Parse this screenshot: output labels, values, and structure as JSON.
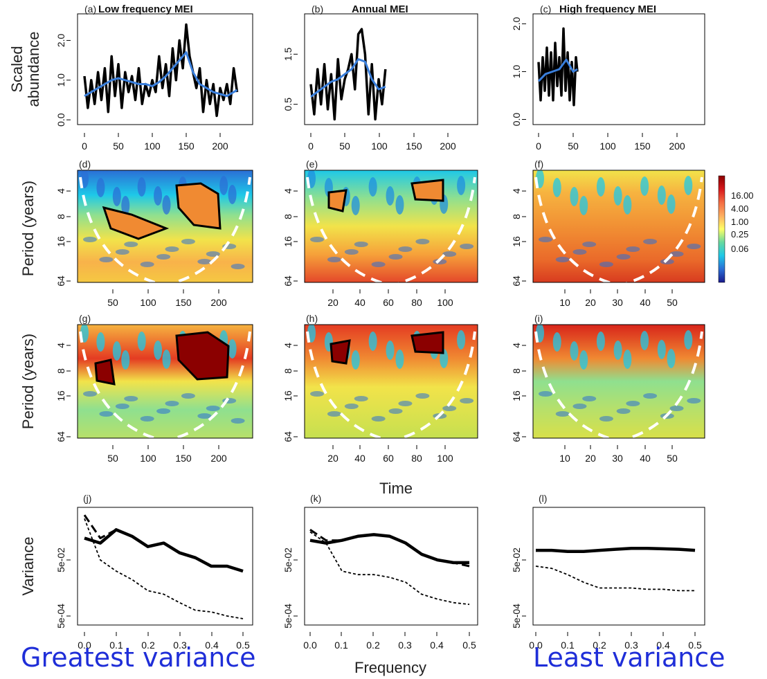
{
  "figure": {
    "ylabel_row1": "Scaled abundance",
    "ylabel_row1_line1": "Scaled",
    "ylabel_row1_line2": "abundance",
    "ylabel_row2": "Period (years)",
    "ylabel_row3": "Period (years)",
    "ylabel_row4": "Variance",
    "xlabel_row3": "Time",
    "xlabel_row4": "Frequency",
    "footer_left": "Greatest variance",
    "footer_right": "Least variance",
    "colors": {
      "raw_series": "#000000",
      "smooth_series": "#3a7fdc",
      "footer_text": "#1f2ed8",
      "cone": "#ffffff"
    }
  },
  "colorbar": {
    "tick_labels": [
      "16.00",
      "4.00",
      "1.00",
      "0.25",
      "0.06"
    ],
    "tick_values": [
      16,
      4,
      1,
      0.25,
      0.06
    ],
    "gradient": [
      "#8b0000",
      "#d7191c",
      "#f46d43",
      "#fdae61",
      "#ffff66",
      "#66d9a0",
      "#1ec8e8",
      "#2b6fd6",
      "#1a1a8c"
    ]
  },
  "chart_data": [
    {
      "id": "a",
      "panel_label": "(a)",
      "title": "Low frequency MEI",
      "type": "line",
      "x_ticks": [
        "0",
        "50",
        "100",
        "150",
        "200"
      ],
      "xlim": [
        -5,
        235
      ],
      "y_ticks": [
        "0.0",
        "1.0",
        "2.0"
      ],
      "ylim": [
        -0.05,
        2.6
      ],
      "series": [
        {
          "x": [
            0,
            5,
            10,
            15,
            20,
            25,
            30,
            35,
            40,
            45,
            50,
            55,
            60,
            65,
            70,
            75,
            80,
            85,
            90,
            95,
            100,
            105,
            110,
            115,
            120,
            125,
            130,
            135,
            140,
            145,
            150,
            155,
            160,
            165,
            170,
            175,
            180,
            185,
            190,
            195,
            200,
            205,
            210,
            215,
            220,
            225
          ],
          "values": [
            1.1,
            0.3,
            1.0,
            0.4,
            1.2,
            0.5,
            1.3,
            0.2,
            1.6,
            0.6,
            1.4,
            0.3,
            1.2,
            0.7,
            1.1,
            0.5,
            1.3,
            0.4,
            0.9,
            0.6,
            1.0,
            0.7,
            1.6,
            0.8,
            1.4,
            0.6,
            1.8,
            1.0,
            2.0,
            1.3,
            2.4,
            1.6,
            1.2,
            0.8,
            1.3,
            0.2,
            1.0,
            0.4,
            0.9,
            0.1,
            0.8,
            0.5,
            0.9,
            0.4,
            1.3,
            0.7
          ]
        },
        {
          "x": [
            0,
            10,
            20,
            30,
            40,
            50,
            60,
            70,
            80,
            90,
            100,
            110,
            120,
            130,
            140,
            150,
            160,
            170,
            180,
            190,
            200,
            210,
            220,
            225
          ],
          "values": [
            0.6,
            0.7,
            0.8,
            0.9,
            1.0,
            1.05,
            1.0,
            0.95,
            0.9,
            0.9,
            0.85,
            0.95,
            1.1,
            1.3,
            1.5,
            1.7,
            1.2,
            0.9,
            0.8,
            0.7,
            0.65,
            0.6,
            0.7,
            0.75
          ]
        }
      ]
    },
    {
      "id": "b",
      "panel_label": "(b)",
      "title": "Annual MEI",
      "type": "line",
      "x_ticks": [
        "0",
        "50",
        "100",
        "150",
        "200"
      ],
      "xlim": [
        -5,
        235
      ],
      "y_ticks": [
        "0.5",
        "1.5"
      ],
      "ylim": [
        0.15,
        2.25
      ],
      "series": [
        {
          "x": [
            0,
            5,
            10,
            15,
            20,
            25,
            30,
            35,
            40,
            45,
            50,
            55,
            60,
            65,
            70,
            75,
            80,
            85,
            90,
            95,
            100,
            105,
            110
          ],
          "values": [
            0.9,
            0.3,
            1.2,
            0.5,
            1.3,
            0.4,
            1.1,
            0.2,
            1.4,
            0.6,
            1.0,
            1.2,
            1.5,
            0.8,
            1.9,
            2.0,
            1.5,
            0.3,
            1.3,
            0.2,
            1.0,
            0.5,
            1.2
          ]
        },
        {
          "x": [
            0,
            10,
            20,
            30,
            40,
            50,
            60,
            70,
            80,
            90,
            100,
            110
          ],
          "values": [
            0.65,
            0.75,
            0.85,
            0.95,
            1.0,
            1.1,
            1.2,
            1.4,
            1.35,
            1.0,
            0.8,
            0.85
          ]
        }
      ]
    },
    {
      "id": "c",
      "panel_label": "(c)",
      "title": "High frequency MEI",
      "type": "line",
      "x_ticks": [
        "0",
        "50",
        "100",
        "150",
        "200"
      ],
      "xlim": [
        -5,
        235
      ],
      "y_ticks": [
        "0.0",
        "1.0",
        "2.0"
      ],
      "ylim": [
        -0.05,
        2.15
      ],
      "series": [
        {
          "x": [
            0,
            3,
            6,
            9,
            12,
            15,
            18,
            21,
            24,
            27,
            30,
            33,
            36,
            39,
            42,
            45,
            48,
            51,
            54,
            56
          ],
          "values": [
            1.2,
            0.4,
            1.3,
            0.6,
            1.5,
            0.5,
            1.4,
            0.4,
            1.6,
            0.7,
            1.3,
            0.5,
            1.9,
            0.6,
            1.4,
            0.4,
            1.2,
            0.3,
            1.3,
            1.0
          ]
        },
        {
          "x": [
            0,
            10,
            20,
            30,
            40,
            50,
            56
          ],
          "values": [
            0.8,
            0.95,
            1.0,
            1.05,
            1.25,
            1.0,
            1.05
          ]
        }
      ]
    },
    {
      "id": "d",
      "panel_label": "(d)",
      "type": "heatmap",
      "x_ticks": [
        "50",
        "100",
        "150",
        "200"
      ],
      "xlim": [
        0,
        225
      ],
      "y_ticks": [
        "4",
        "8",
        "16",
        "64"
      ]
    },
    {
      "id": "e",
      "panel_label": "(e)",
      "type": "heatmap",
      "x_ticks": [
        "20",
        "40",
        "60",
        "80",
        "100"
      ],
      "xlim": [
        0,
        112
      ],
      "y_ticks": [
        "4",
        "8",
        "16",
        "64"
      ]
    },
    {
      "id": "f",
      "panel_label": "(f)",
      "type": "heatmap",
      "x_ticks": [
        "10",
        "20",
        "30",
        "40",
        "50"
      ],
      "xlim": [
        0,
        57
      ],
      "y_ticks": [
        "4",
        "8",
        "16",
        "64"
      ]
    },
    {
      "id": "g",
      "panel_label": "(g)",
      "type": "heatmap",
      "x_ticks": [
        "50",
        "100",
        "150",
        "200"
      ],
      "xlim": [
        0,
        225
      ],
      "y_ticks": [
        "4",
        "8",
        "16",
        "64"
      ]
    },
    {
      "id": "h",
      "panel_label": "(h)",
      "type": "heatmap",
      "x_ticks": [
        "20",
        "40",
        "60",
        "80",
        "100"
      ],
      "xlim": [
        0,
        112
      ],
      "y_ticks": [
        "4",
        "8",
        "16",
        "64"
      ]
    },
    {
      "id": "i",
      "panel_label": "(i)",
      "type": "heatmap",
      "x_ticks": [
        "10",
        "20",
        "30",
        "40",
        "50"
      ],
      "xlim": [
        0,
        57
      ],
      "y_ticks": [
        "4",
        "8",
        "16",
        "64"
      ]
    },
    {
      "id": "j",
      "panel_label": "(j)",
      "type": "line",
      "log_y": true,
      "x_ticks": [
        "0.0",
        "0.1",
        "0.2",
        "0.3",
        "0.4",
        "0.5"
      ],
      "xlim": [
        -0.02,
        0.52
      ],
      "y_ticks": [
        "5e-04",
        "5e-02"
      ],
      "y_tick_values": [
        0.0005,
        0.05
      ],
      "ylim": [
        0.0003,
        3
      ],
      "series": [
        {
          "x": [
            0,
            0.05,
            0.1,
            0.15,
            0.2,
            0.25,
            0.3,
            0.35,
            0.4,
            0.45,
            0.5
          ],
          "values": [
            0.3,
            0.2,
            0.6,
            0.35,
            0.15,
            0.2,
            0.09,
            0.06,
            0.03,
            0.03,
            0.02
          ]
        },
        {
          "x": [
            0,
            0.05,
            0.1,
            0.15,
            0.2,
            0.25,
            0.3,
            0.35,
            0.4,
            0.45,
            0.5
          ],
          "values": [
            2.0,
            0.3,
            0.6,
            0.35,
            0.15,
            0.2,
            0.09,
            0.06,
            0.03,
            0.03,
            0.02
          ]
        },
        {
          "x": [
            0,
            0.05,
            0.1,
            0.15,
            0.2,
            0.25,
            0.3,
            0.35,
            0.4,
            0.45,
            0.5
          ],
          "values": [
            1.5,
            0.05,
            0.02,
            0.01,
            0.004,
            0.003,
            0.0015,
            0.0008,
            0.0007,
            0.0005,
            0.0004
          ]
        }
      ]
    },
    {
      "id": "k",
      "panel_label": "(k)",
      "type": "line",
      "log_y": true,
      "x_ticks": [
        "0.0",
        "0.1",
        "0.2",
        "0.3",
        "0.4",
        "0.5"
      ],
      "xlim": [
        -0.02,
        0.52
      ],
      "y_ticks": [
        "5e-04",
        "5e-02"
      ],
      "y_tick_values": [
        0.0005,
        0.05
      ],
      "ylim": [
        0.0003,
        3
      ],
      "series": [
        {
          "x": [
            0,
            0.05,
            0.1,
            0.15,
            0.2,
            0.25,
            0.3,
            0.35,
            0.4,
            0.45,
            0.5
          ],
          "values": [
            0.25,
            0.2,
            0.25,
            0.35,
            0.4,
            0.35,
            0.2,
            0.08,
            0.05,
            0.04,
            0.04
          ]
        },
        {
          "x": [
            0,
            0.05,
            0.1,
            0.15,
            0.2,
            0.25,
            0.3,
            0.35,
            0.4,
            0.45,
            0.5
          ],
          "values": [
            0.6,
            0.25,
            0.25,
            0.35,
            0.4,
            0.35,
            0.2,
            0.08,
            0.05,
            0.04,
            0.03
          ]
        },
        {
          "x": [
            0,
            0.05,
            0.1,
            0.15,
            0.2,
            0.25,
            0.3,
            0.35,
            0.4,
            0.45,
            0.5
          ],
          "values": [
            0.5,
            0.2,
            0.02,
            0.015,
            0.015,
            0.012,
            0.008,
            0.003,
            0.002,
            0.0015,
            0.0013
          ]
        }
      ]
    },
    {
      "id": "l",
      "panel_label": "(l)",
      "type": "line",
      "log_y": true,
      "x_ticks": [
        "0.0",
        "0.1",
        "0.2",
        "0.3",
        "0.4",
        "0.5"
      ],
      "xlim": [
        -0.02,
        0.52
      ],
      "y_ticks": [
        "5e-04",
        "5e-02"
      ],
      "y_tick_values": [
        0.0005,
        0.05
      ],
      "ylim": [
        0.0003,
        3
      ],
      "series": [
        {
          "x": [
            0,
            0.05,
            0.1,
            0.15,
            0.2,
            0.25,
            0.3,
            0.35,
            0.4,
            0.45,
            0.5
          ],
          "values": [
            0.11,
            0.11,
            0.1,
            0.1,
            0.11,
            0.12,
            0.13,
            0.13,
            0.125,
            0.12,
            0.11
          ]
        },
        {
          "x": [
            0,
            0.05,
            0.1,
            0.15,
            0.2,
            0.25,
            0.3,
            0.35,
            0.4,
            0.45,
            0.5
          ],
          "values": [
            0.03,
            0.025,
            0.015,
            0.008,
            0.005,
            0.005,
            0.005,
            0.0045,
            0.0045,
            0.004,
            0.004
          ]
        }
      ]
    }
  ]
}
